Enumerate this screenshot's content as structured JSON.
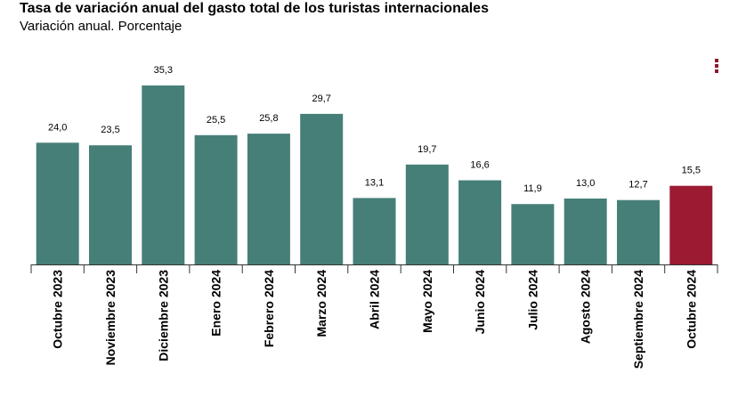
{
  "header": {
    "title": "Tasa de variación anual del gasto total de los turistas internacionales",
    "subtitle": "Variación anual. Porcentaje"
  },
  "menu": {
    "icon": "vertical-ellipsis-icon"
  },
  "colors": {
    "default_bar": "#467f78",
    "highlight_bar": "#9c1a32",
    "axis": "#333333",
    "menu": "#8b1a2e"
  },
  "chart_data": {
    "type": "bar",
    "title": "Tasa de variación anual del gasto total de los turistas internacionales",
    "subtitle": "Variación anual. Porcentaje",
    "categories": [
      "Octubre 2023",
      "Noviembre 2023",
      "Diciembre 2023",
      "Enero 2024",
      "Febrero 2024",
      "Marzo 2024",
      "Abril 2024",
      "Mayo 2024",
      "Junio 2024",
      "Julio 2024",
      "Agosto 2024",
      "Septiembre 2024",
      "Octubre 2024"
    ],
    "values": [
      24.0,
      23.5,
      35.3,
      25.5,
      25.8,
      29.7,
      13.1,
      19.7,
      16.6,
      11.9,
      13.0,
      12.7,
      15.5
    ],
    "value_labels": [
      "24,0",
      "23,5",
      "35,3",
      "25,5",
      "25,8",
      "29,7",
      "13,1",
      "19,7",
      "16,6",
      "11,9",
      "13,0",
      "12,7",
      "15,5"
    ],
    "highlight_index": 12,
    "ylim": [
      0,
      35.3
    ],
    "grid": false,
    "xlabel": "",
    "ylabel": ""
  }
}
